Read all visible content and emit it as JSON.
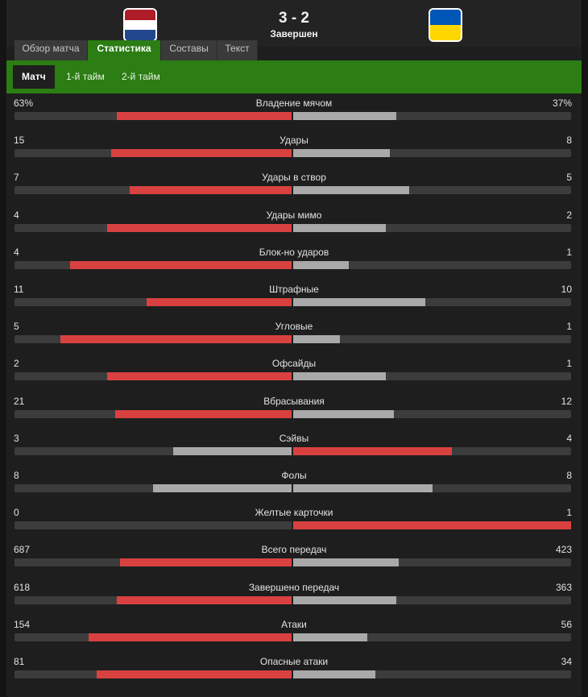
{
  "match": {
    "score": "3 - 2",
    "status": "Завершен",
    "home_flag_colors": [
      "#ae1c28",
      "#ffffff",
      "#21468b"
    ],
    "away_flag_colors": [
      "#0057b7",
      "#ffd700"
    ]
  },
  "tabs": [
    "Обзор матча",
    "Статистика",
    "Составы",
    "Текст"
  ],
  "subtabs": [
    "Матч",
    "1-й тайм",
    "2-й тайм"
  ],
  "colors": {
    "accent": "#2b7d14",
    "leader": "#d94141",
    "other": "#a9a9a9",
    "track": "#3c3c3c"
  },
  "stats": [
    {
      "label": "Владение мячом",
      "home": "63%",
      "away": "37%",
      "home_value": 63,
      "away_value": 37
    },
    {
      "label": "Удары",
      "home": "15",
      "away": "8",
      "home_value": 15,
      "away_value": 8
    },
    {
      "label": "Удары в створ",
      "home": "7",
      "away": "5",
      "home_value": 7,
      "away_value": 5
    },
    {
      "label": "Удары мимо",
      "home": "4",
      "away": "2",
      "home_value": 4,
      "away_value": 2
    },
    {
      "label": "Блок-но ударов",
      "home": "4",
      "away": "1",
      "home_value": 4,
      "away_value": 1
    },
    {
      "label": "Штрафные",
      "home": "11",
      "away": "10",
      "home_value": 11,
      "away_value": 10
    },
    {
      "label": "Угловые",
      "home": "5",
      "away": "1",
      "home_value": 5,
      "away_value": 1
    },
    {
      "label": "Офсайды",
      "home": "2",
      "away": "1",
      "home_value": 2,
      "away_value": 1
    },
    {
      "label": "Вбрасывания",
      "home": "21",
      "away": "12",
      "home_value": 21,
      "away_value": 12
    },
    {
      "label": "Сэйвы",
      "home": "3",
      "away": "4",
      "home_value": 3,
      "away_value": 4
    },
    {
      "label": "Фолы",
      "home": "8",
      "away": "8",
      "home_value": 8,
      "away_value": 8
    },
    {
      "label": "Желтые карточки",
      "home": "0",
      "away": "1",
      "home_value": 0,
      "away_value": 1
    },
    {
      "label": "Всего передач",
      "home": "687",
      "away": "423",
      "home_value": 687,
      "away_value": 423
    },
    {
      "label": "Завершено передач",
      "home": "618",
      "away": "363",
      "home_value": 618,
      "away_value": 363
    },
    {
      "label": "Атаки",
      "home": "154",
      "away": "56",
      "home_value": 154,
      "away_value": 56
    },
    {
      "label": "Опасные атаки",
      "home": "81",
      "away": "34",
      "home_value": 81,
      "away_value": 34
    }
  ]
}
